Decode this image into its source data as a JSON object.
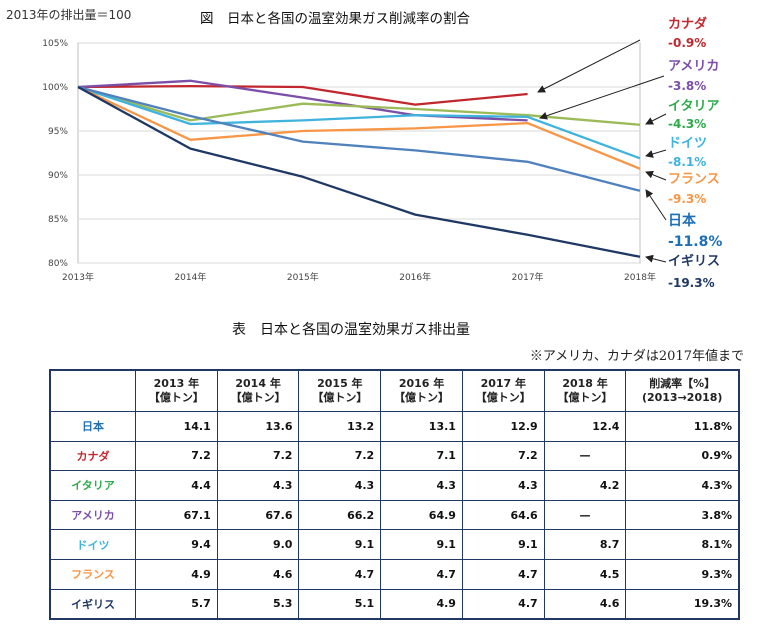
{
  "base_note": "2013年の排出量＝100",
  "chart_title": "図　日本と各国の温室効果ガス削減率の割合",
  "chart_data": {
    "type": "line",
    "title": "図　日本と各国の温室効果ガス削減率の割合",
    "x": [
      "2013年",
      "2014年",
      "2015年",
      "2016年",
      "2017年",
      "2018年"
    ],
    "ylim": [
      80,
      105
    ],
    "y_ticks": [
      "80%",
      "85%",
      "90%",
      "95%",
      "100%",
      "105%"
    ],
    "grid": true,
    "series": [
      {
        "name": "カナダ",
        "change": "-0.9%",
        "color": "#c0282e",
        "values": [
          100,
          100.1,
          100,
          98,
          99.2,
          null
        ]
      },
      {
        "name": "アメリカ",
        "change": "-3.8%",
        "color": "#7b4fa8",
        "values": [
          100,
          100.7,
          98.8,
          96.8,
          96.2,
          null
        ]
      },
      {
        "name": "イタリア",
        "change": "-4.3%",
        "color": "#9bbb59",
        "values": [
          100,
          96.2,
          98.1,
          97.5,
          96.8,
          95.7
        ]
      },
      {
        "name": "ドイツ",
        "change": "-8.1%",
        "color": "#3fb3dd",
        "values": [
          100,
          95.8,
          96.2,
          96.8,
          96.6,
          91.9
        ]
      },
      {
        "name": "フランス",
        "change": "-9.3%",
        "color": "#f79646",
        "values": [
          100,
          94,
          95,
          95.3,
          95.9,
          90.7
        ]
      },
      {
        "name": "日本",
        "change": "-11.8%",
        "color": "#4f81bd",
        "values": [
          100,
          96.7,
          93.8,
          92.8,
          91.5,
          88.2
        ]
      },
      {
        "name": "イギリス",
        "change": "-19.3%",
        "color": "#1f3864",
        "values": [
          100,
          93,
          89.8,
          85.5,
          83.2,
          80.7
        ]
      }
    ]
  },
  "table": {
    "title": "表　日本と各国の温室効果ガス排出量",
    "note": "※アメリカ、カナダは2017年値まで",
    "headers": [
      {
        "line1": "2013 年",
        "line2": "【億トン】"
      },
      {
        "line1": "2014 年",
        "line2": "【億トン】"
      },
      {
        "line1": "2015 年",
        "line2": "【億トン】"
      },
      {
        "line1": "2016 年",
        "line2": "【億トン】"
      },
      {
        "line1": "2017 年",
        "line2": "【億トン】"
      },
      {
        "line1": "2018 年",
        "line2": "【億トン】"
      },
      {
        "line1": "削減率【%】",
        "line2": "(2013→2018)"
      }
    ],
    "rows": [
      {
        "country": "日本",
        "color": "#1f6fb5",
        "values": [
          "14.1",
          "13.6",
          "13.2",
          "13.1",
          "12.9",
          "12.4",
          "11.8%"
        ]
      },
      {
        "country": "カナダ",
        "color": "#c0282e",
        "values": [
          "7.2",
          "7.2",
          "7.2",
          "7.1",
          "7.2",
          "—",
          "0.9%"
        ]
      },
      {
        "country": "イタリア",
        "color": "#2eaa4a",
        "values": [
          "4.4",
          "4.3",
          "4.3",
          "4.3",
          "4.3",
          "4.2",
          "4.3%"
        ]
      },
      {
        "country": "アメリカ",
        "color": "#7b4fa8",
        "values": [
          "67.1",
          "67.6",
          "66.2",
          "64.9",
          "64.6",
          "—",
          "3.8%"
        ]
      },
      {
        "country": "ドイツ",
        "color": "#3fb3dd",
        "values": [
          "9.4",
          "9.0",
          "9.1",
          "9.1",
          "9.1",
          "8.7",
          "8.1%"
        ]
      },
      {
        "country": "フランス",
        "color": "#f79646",
        "values": [
          "4.9",
          "4.6",
          "4.7",
          "4.7",
          "4.7",
          "4.5",
          "9.3%"
        ]
      },
      {
        "country": "イギリス",
        "color": "#1f3864",
        "values": [
          "5.7",
          "5.3",
          "5.1",
          "4.9",
          "4.7",
          "4.6",
          "19.3%"
        ]
      }
    ]
  }
}
